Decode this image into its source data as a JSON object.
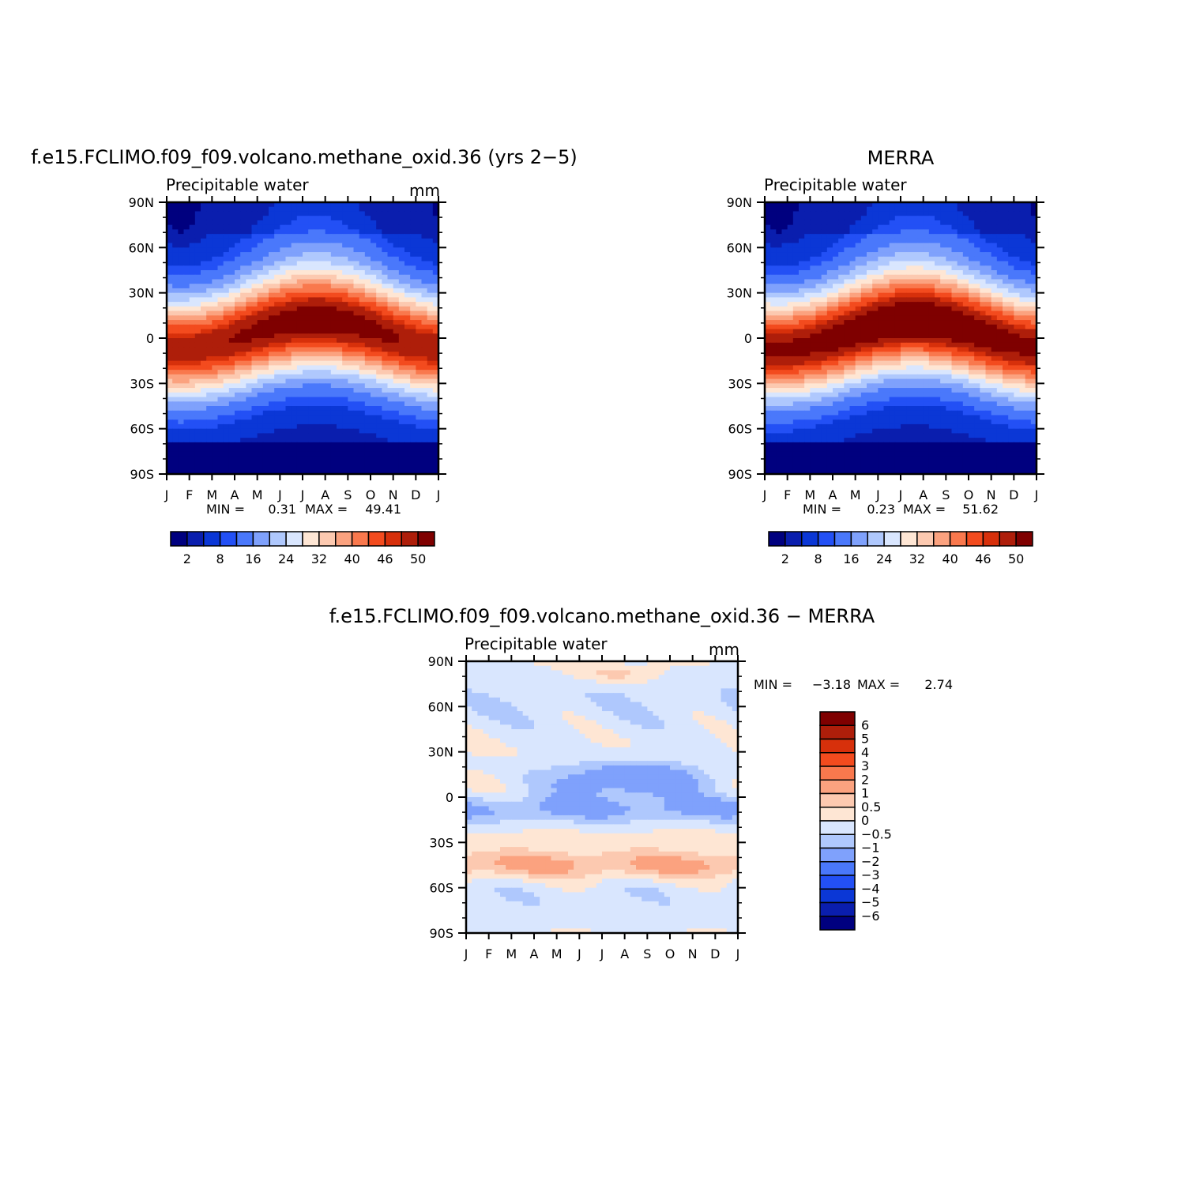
{
  "colors": {
    "abs_scale": [
      "#00007f",
      "#0a1eae",
      "#0b37d6",
      "#2350f5",
      "#4a78fb",
      "#7fa1fc",
      "#afc8fd",
      "#d9e6fe",
      "#fee6d4",
      "#fcc9b0",
      "#fba27f",
      "#f9784d",
      "#f34b1e",
      "#d7300b",
      "#ae1e0a",
      "#7f0000"
    ],
    "diff_scale": [
      "#00007f",
      "#0a1eae",
      "#0b37d6",
      "#2350f5",
      "#4a78fb",
      "#7fa1fc",
      "#afc8fd",
      "#d9e6fe",
      "#fee6d4",
      "#fcc9b0",
      "#fba27f",
      "#f9784d",
      "#f34b1e",
      "#d7300b",
      "#ae1e0a",
      "#7f0000"
    ]
  },
  "chart_data": [
    {
      "type": "heatmap",
      "id": "model",
      "title": "f.e15.FCLIMO.f09_f09.volcano.methane_oxid.36 (yrs 2−5)",
      "subtitle": "Precipitable water",
      "units": "mm",
      "x_tick_labels": [
        "J",
        "F",
        "M",
        "A",
        "M",
        "J",
        "J",
        "A",
        "S",
        "O",
        "N",
        "D",
        "J"
      ],
      "y_tick_labels": [
        "90N",
        "60N",
        "30N",
        "0",
        "30S",
        "60S",
        "90S"
      ],
      "ylim": [
        -90,
        90
      ],
      "min_label": "MIN =",
      "min_value": "0.31",
      "max_label": "MAX =",
      "max_value": "49.41",
      "min": 0.31,
      "max": 49.41,
      "colorbar_labels": [
        "2",
        "8",
        "16",
        "24",
        "32",
        "40",
        "46",
        "50"
      ],
      "colorbar_levels": [
        2,
        4,
        6,
        8,
        12,
        16,
        20,
        24,
        28,
        32,
        36,
        40,
        44,
        46,
        50
      ],
      "description_peak_lat": {
        "jan": -8,
        "jul": 10
      }
    },
    {
      "type": "heatmap",
      "id": "obs",
      "title": "MERRA",
      "subtitle": "Precipitable water",
      "units": "",
      "x_tick_labels": [
        "J",
        "F",
        "M",
        "A",
        "M",
        "J",
        "J",
        "A",
        "S",
        "O",
        "N",
        "D",
        "J"
      ],
      "y_tick_labels": [
        "90N",
        "60N",
        "30N",
        "0",
        "30S",
        "60S",
        "90S"
      ],
      "ylim": [
        -90,
        90
      ],
      "min_label": "MIN =",
      "min_value": "0.23",
      "max_label": "MAX =",
      "max_value": "51.62",
      "min": 0.23,
      "max": 51.62,
      "colorbar_labels": [
        "2",
        "8",
        "16",
        "24",
        "32",
        "40",
        "46",
        "50"
      ],
      "colorbar_levels": [
        2,
        4,
        6,
        8,
        12,
        16,
        20,
        24,
        28,
        32,
        36,
        40,
        44,
        46,
        50
      ]
    },
    {
      "type": "heatmap",
      "id": "diff",
      "title": "f.e15.FCLIMO.f09_f09.volcano.methane_oxid.36 − MERRA",
      "subtitle": "Precipitable water",
      "units": "mm",
      "x_tick_labels": [
        "J",
        "F",
        "M",
        "A",
        "M",
        "J",
        "J",
        "A",
        "S",
        "O",
        "N",
        "D",
        "J"
      ],
      "y_tick_labels": [
        "90N",
        "60N",
        "30N",
        "0",
        "30S",
        "60S",
        "90S"
      ],
      "ylim": [
        -90,
        90
      ],
      "min_label": "MIN =",
      "min_value": "−3.18",
      "max_label": "MAX =",
      "max_value": "2.74",
      "min": -3.18,
      "max": 2.74,
      "colorbar_labels": [
        "6",
        "5",
        "4",
        "3",
        "2",
        "1",
        "0.5",
        "0",
        "−0.5",
        "−1",
        "−2",
        "−3",
        "−4",
        "−5",
        "−6"
      ],
      "colorbar_levels": [
        -6,
        -5,
        -4,
        -3,
        -2,
        -1,
        -0.5,
        0,
        0.5,
        1,
        2,
        3,
        4,
        5,
        6
      ]
    }
  ]
}
